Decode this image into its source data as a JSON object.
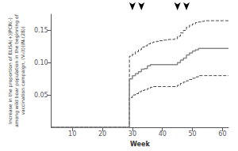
{
  "chart_data": {
    "type": "step",
    "xlabel": "Week",
    "ylabel": "Increase in the proportion of ELISA(+)|PCR(-)\namong wild boar population in the beginning of\nvaccination campaign, (V₁(t))(Nᵥ(28))",
    "x": [
      3,
      29,
      29,
      30,
      31,
      32,
      33,
      34,
      35,
      36,
      37,
      38,
      39,
      40,
      41,
      42,
      43,
      44,
      45,
      46,
      47,
      48,
      49,
      50,
      51,
      52,
      53,
      54,
      55,
      56,
      57,
      58,
      59,
      60,
      61,
      62
    ],
    "series": [
      {
        "color": "#888888",
        "line_style": "solid",
        "values": [
          0,
          0,
          0.075,
          0.08,
          0.083,
          0.086,
          0.09,
          0.091,
          0.095,
          0.097,
          0.097,
          0.097,
          0.097,
          0.097,
          0.097,
          0.097,
          0.097,
          0.097,
          0.1,
          0.104,
          0.107,
          0.112,
          0.115,
          0.118,
          0.12,
          0.122,
          0.122,
          0.122,
          0.122,
          0.122,
          0.122,
          0.122,
          0.122,
          0.122,
          0.122,
          0.122
        ]
      },
      {
        "color": "#444444",
        "line_style": "dashed",
        "values": [
          0,
          0,
          0.11,
          0.113,
          0.117,
          0.12,
          0.124,
          0.126,
          0.129,
          0.131,
          0.132,
          0.133,
          0.134,
          0.135,
          0.135,
          0.136,
          0.136,
          0.137,
          0.141,
          0.146,
          0.15,
          0.155,
          0.158,
          0.16,
          0.162,
          0.163,
          0.164,
          0.165,
          0.165,
          0.165,
          0.165,
          0.165,
          0.165,
          0.165,
          0.165,
          0.165
        ]
      },
      {
        "color": "#444444",
        "line_style": "dashed",
        "values": [
          0,
          0,
          0.046,
          0.05,
          0.052,
          0.055,
          0.057,
          0.058,
          0.06,
          0.062,
          0.063,
          0.063,
          0.063,
          0.063,
          0.063,
          0.063,
          0.063,
          0.063,
          0.065,
          0.068,
          0.07,
          0.072,
          0.074,
          0.076,
          0.078,
          0.08,
          0.08,
          0.08,
          0.08,
          0.08,
          0.08,
          0.08,
          0.08,
          0.08,
          0.08,
          0.08
        ]
      }
    ],
    "xlim": [
      3,
      62
    ],
    "xticks": [
      10,
      20,
      30,
      40,
      50,
      60
    ],
    "ylim": [
      0,
      0.175
    ],
    "yticks": [
      0.05,
      {
        "value": 0.1,
        "label": "0.10"
      },
      0.15
    ],
    "grid": false,
    "annotations": [
      {
        "x": 30,
        "y": 0.175,
        "marker": "arrow"
      },
      {
        "x": 33,
        "y": 0.175,
        "marker": "arrow"
      },
      {
        "x": 45,
        "y": 0.175,
        "marker": "arrow"
      },
      {
        "x": 48,
        "y": 0.175,
        "marker": "arrow"
      }
    ]
  }
}
